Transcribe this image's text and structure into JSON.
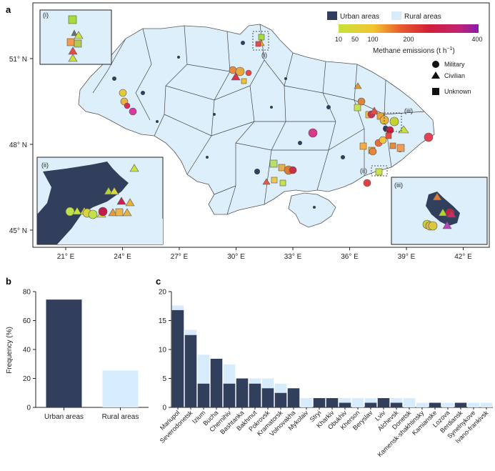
{
  "panels": {
    "a": "a",
    "b": "b",
    "c": "c"
  },
  "map": {
    "lat_labels": [
      "51° N",
      "48° N",
      "45° N"
    ],
    "lon_labels": [
      "21° E",
      "24° E",
      "27° E",
      "30° E",
      "33° E",
      "36° E",
      "39° E",
      "42° E"
    ],
    "legend": {
      "urban": "Urban areas",
      "rural": "Rural areas",
      "colorbar_ticks": [
        "10",
        "50",
        "100",
        "200",
        "400"
      ],
      "colorbar_title": "Methane emissions (t h",
      "colorbar_title_sup": "−1",
      "colorbar_title_end": ")",
      "shapes": [
        "Military",
        "Civilian",
        "Unknown"
      ]
    },
    "insets": [
      "(i)",
      "(ii)",
      "(iii)"
    ],
    "colors": {
      "water": "#ffffff",
      "land": "#deeffc",
      "urban": "#323f5c",
      "border": "#666666"
    }
  },
  "chart_data": [
    {
      "type": "bar",
      "ylabel": "Frequency (%)",
      "categories": [
        "Urban areas",
        "Rural areas"
      ],
      "values": [
        74.5,
        25.5
      ],
      "ylim": [
        0,
        80
      ],
      "yticks": [
        "0",
        "20",
        "40",
        "60",
        "80"
      ],
      "colors": [
        "#323f5c",
        "#d6ebfb"
      ]
    },
    {
      "type": "bar",
      "stacked": true,
      "categories": [
        "Mariupol",
        "Severodonetsk",
        "Izium",
        "Bucha",
        "Chernihiv",
        "Bashtanka",
        "Bakhmut",
        "Pokrovsk",
        "Kramatorsk",
        "Volnovakha",
        "Mykolaiv",
        "Stryi",
        "Kharkiv",
        "Obukhiv",
        "Kherson",
        "Beryslav",
        "Lviv",
        "Alchevsk",
        "Donetsk",
        "Kamensk-shakhtinsky",
        "Kamianske",
        "Lozova",
        "Berdiansk",
        "Synelnykove",
        "Ivano-frankivsk"
      ],
      "series": [
        {
          "name": "Urban areas",
          "values": [
            16.8,
            12.5,
            4.1,
            8.4,
            4.1,
            5.0,
            4.1,
            3.3,
            2.5,
            3.3,
            0,
            1.6,
            1.6,
            0.8,
            0,
            0.8,
            1.6,
            0.8,
            0,
            0,
            0.8,
            0,
            0.8,
            0,
            0
          ]
        },
        {
          "name": "Rural areas",
          "values": [
            0.8,
            0.9,
            5.0,
            0,
            3.3,
            0,
            0.9,
            1.7,
            1.6,
            0,
            1.6,
            0,
            0,
            0.8,
            1.6,
            0.8,
            0,
            0.8,
            1.6,
            0.8,
            0,
            0.8,
            0,
            0.8,
            0.8
          ]
        }
      ],
      "ylim": [
        0,
        20
      ],
      "yticks": [
        "0",
        "5",
        "10",
        "15",
        "20"
      ],
      "colors": [
        "#323f5c",
        "#d6ebfb"
      ]
    }
  ]
}
